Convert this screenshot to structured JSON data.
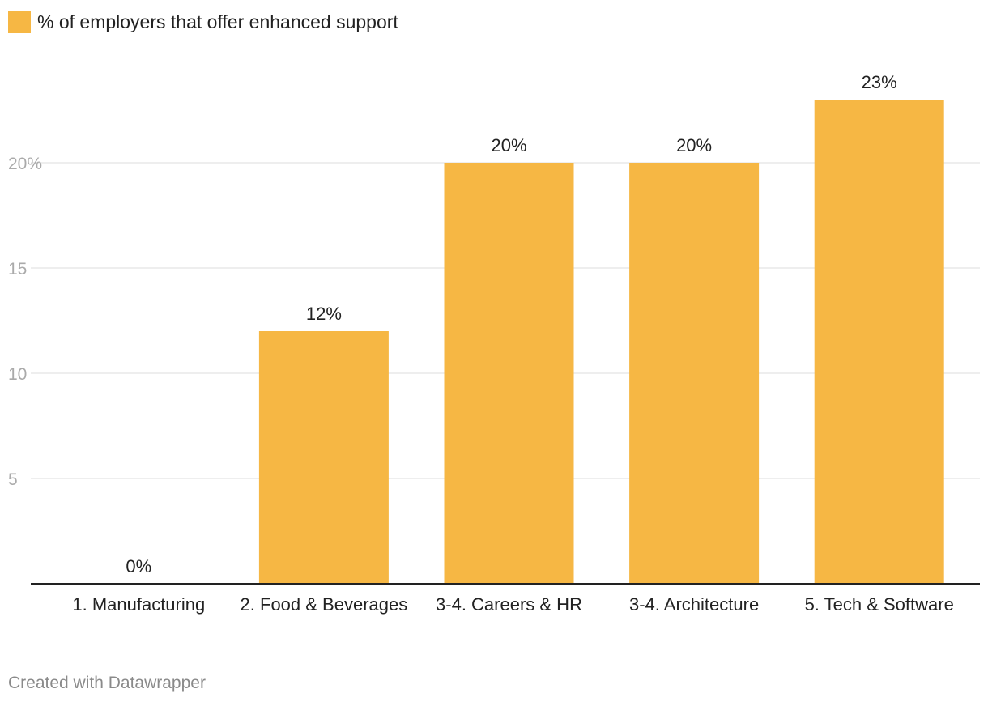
{
  "colors": {
    "bar": "#F6B744",
    "grid": "#e3e3e3",
    "tick": "#aaaaaa",
    "baseline": "#222222"
  },
  "chart_data": {
    "type": "bar",
    "title": "",
    "legend_label": "% of employers that offer enhanced support",
    "categories": [
      "1. Manufacturing",
      "2. Food & Beverages",
      "3-4. Careers & HR",
      "3-4. Architecture",
      "5. Tech & Software"
    ],
    "values": [
      0,
      12,
      20,
      20,
      23
    ],
    "data_labels": [
      "0%",
      "12%",
      "20%",
      "20%",
      "23%"
    ],
    "yticks": [
      5,
      10,
      15,
      20
    ],
    "ytick_labels": [
      "5",
      "10",
      "15",
      "20%"
    ],
    "ylim": [
      0,
      25
    ],
    "xlabel": "",
    "ylabel": "",
    "grid": true,
    "legend": "top-left"
  },
  "footer": {
    "credit": "Created with Datawrapper"
  }
}
